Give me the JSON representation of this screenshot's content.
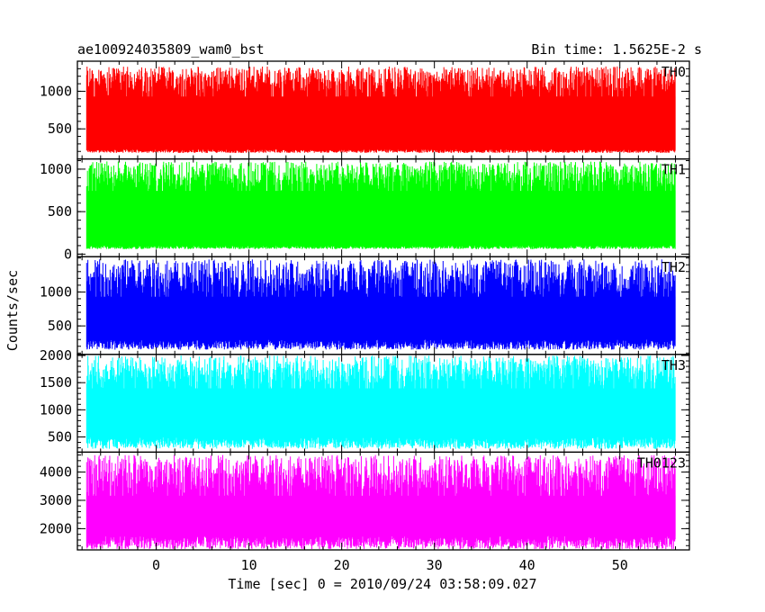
{
  "header": {
    "title": "ae100924035809_wam0_bst",
    "bin_time": "Bin time: 1.5625E-2 s"
  },
  "chart_data": {
    "type": "line",
    "ylabel": "Counts/sec",
    "xlabel": "Time [sec] 0 = 2010/09/24 03:58:09.027",
    "xlim": [
      -8.5,
      57.5
    ],
    "x_ticks": [
      0,
      10,
      20,
      30,
      40,
      50
    ],
    "x_tick_labels": [
      "0",
      "10",
      "20",
      "30",
      "40",
      "50"
    ],
    "x_data_range": [
      -7.5,
      56
    ],
    "panels": [
      {
        "name": "TH0",
        "color": "#ff0000",
        "ylim": [
          100,
          1400
        ],
        "ticks": [
          500,
          1000
        ],
        "tick_labels": [
          "500",
          "1000"
        ],
        "baseline": 180,
        "low": 230,
        "high": 1000,
        "peak": 1330
      },
      {
        "name": "TH1",
        "color": "#00ff00",
        "ylim": [
          -30,
          1120
        ],
        "ticks": [
          0,
          500,
          1000
        ],
        "tick_labels": [
          "0",
          "500",
          "1000"
        ],
        "baseline": 60,
        "low": 100,
        "high": 800,
        "peak": 1090
      },
      {
        "name": "TH2",
        "color": "#0000ff",
        "ylim": [
          80,
          1520
        ],
        "ticks": [
          500,
          1000
        ],
        "tick_labels": [
          "500",
          "1000"
        ],
        "baseline": 150,
        "low": 300,
        "high": 1000,
        "peak": 1480
      },
      {
        "name": "TH3",
        "color": "#00ffff",
        "ylim": [
          220,
          2020
        ],
        "ticks": [
          500,
          1000,
          1500,
          2000
        ],
        "tick_labels": [
          "500",
          "1000",
          "1500",
          "2000"
        ],
        "baseline": 280,
        "low": 500,
        "high": 1500,
        "peak": 2000
      },
      {
        "name": "TH0123",
        "color": "#ff00ff",
        "ylim": [
          1250,
          4700
        ],
        "ticks": [
          2000,
          3000,
          4000
        ],
        "tick_labels": [
          "2000",
          "3000",
          "4000"
        ],
        "baseline": 1280,
        "low": 1750,
        "high": 3400,
        "peak": 4600
      }
    ]
  }
}
